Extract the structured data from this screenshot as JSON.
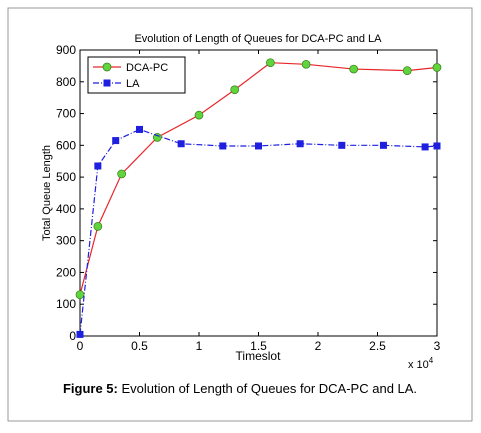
{
  "chart_data": {
    "type": "line",
    "title": "Evolution of Length of Queues for DCA-PC and LA",
    "x_label": "Timeslot",
    "y_label": "Total Queue Length",
    "x_scale_label": "x 10",
    "x_scale_exponent": "4",
    "xlim": [
      0,
      3
    ],
    "xticks": [
      0,
      0.5,
      1,
      1.5,
      2,
      2.5,
      3
    ],
    "ylim": [
      0,
      900
    ],
    "yticks": [
      0,
      100,
      200,
      300,
      400,
      500,
      600,
      700,
      800,
      900
    ],
    "grid": false,
    "legend": "upper-left",
    "series": [
      {
        "name": "DCA-PC",
        "color": "#e8262a",
        "marker": "circle",
        "marker_color": "#5fd43c",
        "dash": "solid",
        "x": [
          0,
          0.15,
          0.35,
          0.65,
          1.0,
          1.3,
          1.6,
          1.9,
          2.3,
          2.75,
          3.0
        ],
        "values": [
          130,
          345,
          510,
          625,
          695,
          775,
          860,
          855,
          840,
          835,
          845
        ]
      },
      {
        "name": "LA",
        "color": "#1f1fe0",
        "marker": "square",
        "marker_color": "#1f1fe0",
        "dash": "dashdot",
        "x": [
          0,
          0.15,
          0.3,
          0.5,
          0.85,
          1.2,
          1.5,
          1.85,
          2.2,
          2.55,
          2.9,
          3.0
        ],
        "values": [
          5,
          535,
          615,
          650,
          605,
          598,
          598,
          605,
          600,
          600,
          595,
          598
        ]
      }
    ],
    "caption_label": "Figure 5:",
    "caption": "Evolution of Length of Queues for DCA-PC and LA."
  }
}
